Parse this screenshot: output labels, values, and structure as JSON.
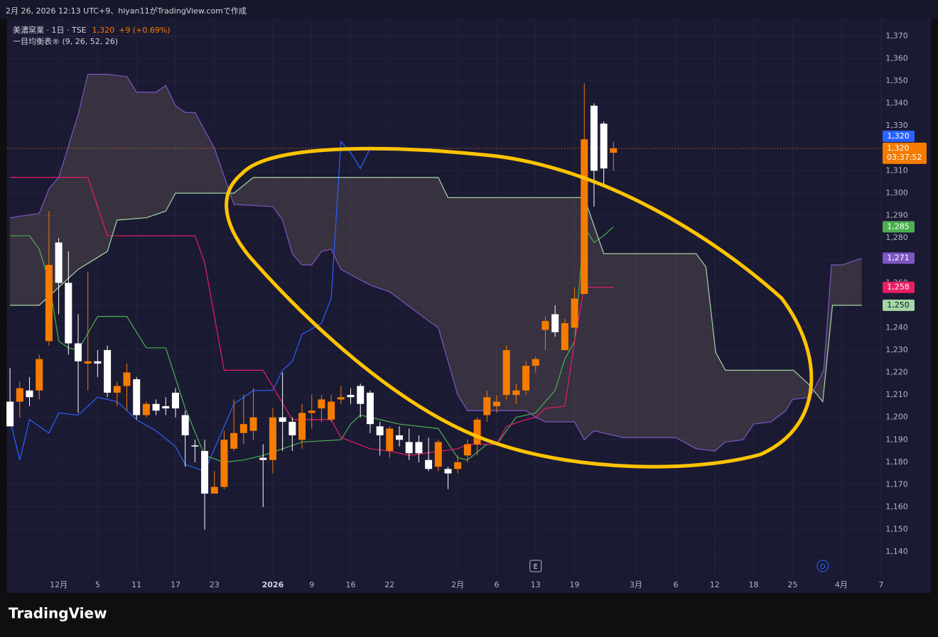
{
  "chart_data": {
    "type": "candlestick",
    "header": "2月 26, 2026 12:13 UTC+9、hiyan11がTradingView.comで作成",
    "symbol": "美濃窯業 · 1日 · TSE",
    "last": "1,320",
    "change": "+9 (+0.69%)",
    "indicator": "一目均衡表® (9, 26, 52, 26)",
    "logo": "TradingView",
    "up_color": "#f57c00",
    "down_color": "#ffffff",
    "x": [
      0,
      1,
      2,
      3,
      4,
      5,
      6,
      7,
      8,
      9,
      10,
      11,
      12,
      13,
      14,
      15,
      16,
      17,
      18,
      19,
      20,
      21,
      22,
      23,
      24,
      25,
      26,
      27,
      28,
      29,
      30,
      31,
      32,
      33,
      34,
      35,
      36,
      37,
      38,
      39,
      40,
      41,
      42,
      43,
      44,
      45,
      46,
      47,
      48,
      49,
      50,
      51,
      52,
      53,
      54,
      55,
      56,
      57,
      58,
      59,
      60,
      61,
      62
    ],
    "open": [
      1207,
      1207,
      1212,
      1212,
      1234,
      1278,
      1260,
      1233,
      1224,
      1225,
      1230,
      1211,
      1214,
      1217,
      1201,
      1206,
      1205,
      1211,
      1201,
      1187.5,
      1185,
      1166,
      1169,
      1186,
      1193,
      1194,
      1182,
      1181,
      1200,
      1198,
      1190,
      1202,
      1204,
      1199,
      1208,
      1210,
      1214,
      1211,
      1196,
      1185,
      1192,
      1189,
      1189,
      1181,
      1178,
      1177,
      1177,
      1183,
      1188,
      1201,
      1205,
      1210,
      1210,
      1212,
      1223,
      1239,
      1246,
      1230,
      1240,
      1255,
      1339,
      1331,
      1318
    ],
    "high": [
      1222,
      1216,
      1218,
      1228,
      1292,
      1280,
      1274,
      1246,
      1265,
      1230,
      1232,
      1216,
      1224,
      1218,
      1207,
      1208,
      1209,
      1213,
      1203,
      1190,
      1190,
      1176,
      1194,
      1208,
      1210,
      1213,
      1188,
      1204,
      1220,
      1200,
      1206,
      1210,
      1210,
      1210,
      1214,
      1213,
      1215,
      1212,
      1198,
      1196,
      1196,
      1195,
      1192,
      1191,
      1190,
      1178,
      1183,
      1190,
      1200,
      1212,
      1210,
      1232,
      1215,
      1225,
      1227,
      1245,
      1250,
      1244,
      1258,
      1349,
      1340,
      1332,
      1323
    ],
    "low": [
      1196,
      1200,
      1205,
      1208,
      1232,
      1246,
      1228,
      1202,
      1212,
      1218,
      1209,
      1205,
      1203,
      1199,
      1200,
      1201,
      1201,
      1200,
      1178,
      1180,
      1150,
      1166,
      1168,
      1185,
      1188,
      1190,
      1160,
      1175,
      1185,
      1185,
      1186,
      1195,
      1198,
      1198,
      1206,
      1206,
      1200,
      1193,
      1183,
      1182,
      1187,
      1181,
      1180,
      1176,
      1176,
      1168,
      1175,
      1180,
      1183,
      1198,
      1202,
      1208,
      1206,
      1210,
      1220,
      1230,
      1236,
      1230,
      1240,
      1255,
      1294,
      1304,
      1310
    ],
    "close": [
      1196,
      1213,
      1209,
      1226,
      1268,
      1260,
      1233,
      1225,
      1225,
      1224,
      1211,
      1214,
      1220,
      1201,
      1206,
      1203,
      1204,
      1204,
      1192,
      1187,
      1166,
      1169,
      1190,
      1193,
      1197,
      1200,
      1181,
      1200,
      1198,
      1192,
      1202,
      1203,
      1208,
      1207,
      1209,
      1209,
      1206,
      1197,
      1192,
      1195,
      1190,
      1184,
      1184,
      1177,
      1189,
      1175,
      1180,
      1188,
      1199,
      1209,
      1207,
      1230,
      1212,
      1223,
      1226,
      1243,
      1238,
      1242,
      1253,
      1324,
      1310,
      1311,
      1320
    ],
    "lines": [
      {
        "color": "#2962ff",
        "x": [
          0,
          1,
          2,
          4,
          5,
          7,
          9,
          11,
          13,
          15,
          17,
          18,
          20,
          21,
          23,
          25,
          27,
          28,
          29,
          30,
          32,
          33,
          34,
          35,
          36,
          37
        ],
        "values": [
          1199,
          1181,
          1199,
          1193,
          1202,
          1201,
          1209,
          1207,
          1199,
          1194,
          1187,
          1179,
          1176,
          1186,
          1206,
          1212,
          1212,
          1221,
          1225,
          1237,
          1242,
          1253,
          1323,
          1318,
          1311,
          1320
        ]
      },
      {
        "color": "#4caf50",
        "x": [
          0,
          2,
          3,
          4,
          5,
          6,
          7,
          9,
          12,
          14,
          16,
          18,
          20,
          22,
          24,
          26,
          28,
          30,
          34,
          35,
          36,
          38,
          40,
          44,
          46,
          47,
          49,
          50,
          52,
          54,
          56,
          57,
          58,
          59,
          60,
          61,
          62
        ],
        "values": [
          1281,
          1281,
          1275,
          1261,
          1234,
          1231,
          1230,
          1245,
          1245,
          1231,
          1231,
          1204,
          1183,
          1180,
          1181,
          1183,
          1186,
          1189,
          1190,
          1197,
          1201,
          1199,
          1197,
          1195,
          1182,
          1181,
          1188,
          1188,
          1200,
          1202,
          1212,
          1226,
          1234,
          1285,
          1278,
          1281,
          1285
        ]
      },
      {
        "color": "#e91e63",
        "x": [
          0,
          8,
          10,
          19,
          20,
          22,
          26,
          29,
          33,
          34,
          37,
          39,
          41,
          46,
          47,
          50,
          51,
          53,
          54,
          55,
          57,
          58,
          59,
          62
        ],
        "values": [
          1307,
          1307,
          1281,
          1281,
          1269,
          1221,
          1221,
          1199,
          1199,
          1191,
          1186,
          1185,
          1183,
          1186,
          1188,
          1188,
          1196,
          1199,
          1200,
          1204,
          1205,
          1234,
          1258,
          1258
        ]
      },
      {
        "color": "#a5d6a7",
        "x": [
          0,
          3,
          7,
          10,
          11,
          14,
          16,
          17,
          20,
          23,
          25,
          44,
          45,
          59,
          61,
          70.5,
          71.5,
          72.5,
          73.5,
          80.5,
          82,
          83.5,
          84.5,
          87.5
        ],
        "values": [
          1250,
          1250,
          1266,
          1274,
          1288,
          1289,
          1292,
          1300,
          1300,
          1300,
          1307,
          1307,
          1298,
          1298,
          1273,
          1273,
          1267,
          1229,
          1221,
          1221,
          1215,
          1207,
          1250,
          1250
        ]
      },
      {
        "color": "#7e57c2",
        "x": [
          0,
          3,
          4,
          5,
          7,
          8,
          10,
          12,
          13,
          15,
          16,
          17,
          18,
          19,
          21,
          23,
          27,
          28,
          29,
          30,
          31,
          32,
          33,
          34,
          37,
          39,
          43,
          44,
          46,
          47,
          53,
          54,
          55,
          58,
          59,
          60,
          63,
          68.4,
          70.5,
          72.4,
          73.5,
          75.3,
          76.4,
          78.2,
          79.7,
          80.4,
          82.2,
          83.6,
          84.4,
          85.5,
          87.5
        ],
        "values": [
          1289,
          1291,
          1302,
          1307,
          1335,
          1353,
          1353,
          1352,
          1345,
          1345,
          1348,
          1339,
          1336,
          1336,
          1320,
          1295,
          1294,
          1288,
          1273,
          1268,
          1268,
          1274,
          1275,
          1266,
          1259,
          1256,
          1243,
          1240,
          1210,
          1203,
          1203,
          1200,
          1198,
          1198,
          1190,
          1194,
          1191,
          1191,
          1186,
          1185,
          1189,
          1190,
          1197,
          1198,
          1203,
          1208,
          1209,
          1221,
          1268,
          1268,
          1271
        ]
      }
    ],
    "price_labels": [
      {
        "value": 1320,
        "label": "1,320",
        "color": "#2962ff"
      },
      {
        "value": 1285,
        "label": "1,285",
        "color": "#4caf50"
      },
      {
        "value": 1271,
        "label": "1,271",
        "color": "#7e57c2"
      },
      {
        "value": 1258,
        "label": "1,258",
        "color": "#e91e63"
      },
      {
        "value": 1250,
        "label": "1,250",
        "color": "#a5d6a7"
      }
    ],
    "last_price": {
      "value": 1320,
      "label": "1,320",
      "countdown": "03:37:52",
      "color": "#f57c00"
    },
    "markers": [
      {
        "label": "E",
        "x": 54
      },
      {
        "label": "D",
        "x": 83.5
      }
    ],
    "xlim": [
      -0.3,
      89.5
    ],
    "ylim": [
      1129.6,
      1377.9
    ],
    "xticks": [
      {
        "value": 5,
        "label": "12月"
      },
      {
        "value": 9,
        "label": "5"
      },
      {
        "value": 13,
        "label": "11"
      },
      {
        "value": 17,
        "label": "17"
      },
      {
        "value": 21,
        "label": "23"
      },
      {
        "value": 27,
        "label": "2026"
      },
      {
        "value": 31,
        "label": "9"
      },
      {
        "value": 35,
        "label": "16"
      },
      {
        "value": 39,
        "label": "22"
      },
      {
        "value": 46,
        "label": "2月"
      },
      {
        "value": 50,
        "label": "6"
      },
      {
        "value": 54,
        "label": "13"
      },
      {
        "value": 58,
        "label": "19"
      },
      {
        "value": 64.3,
        "label": "3月"
      },
      {
        "value": 68.4,
        "label": "6"
      },
      {
        "value": 72.4,
        "label": "12"
      },
      {
        "value": 76.4,
        "label": "18"
      },
      {
        "value": 80.4,
        "label": "25"
      },
      {
        "value": 85.4,
        "label": "4月"
      },
      {
        "value": 89.5,
        "label": "7"
      }
    ],
    "yticks": [
      {
        "value": 1140,
        "label": "1,140"
      },
      {
        "value": 1150,
        "label": "1,150"
      },
      {
        "value": 1160,
        "label": "1,160"
      },
      {
        "value": 1170,
        "label": "1,170"
      },
      {
        "value": 1180,
        "label": "1,180"
      },
      {
        "value": 1190,
        "label": "1,190"
      },
      {
        "value": 1200,
        "label": "1,200"
      },
      {
        "value": 1210,
        "label": "1,210"
      },
      {
        "value": 1220,
        "label": "1,220"
      },
      {
        "value": 1230,
        "label": "1,230"
      },
      {
        "value": 1240,
        "label": "1,240"
      },
      {
        "value": 1250,
        "label": "1,250"
      },
      {
        "value": 1260,
        "label": "1,260"
      },
      {
        "value": 1270,
        "label": "1,270"
      },
      {
        "value": 1280,
        "label": "1,280"
      },
      {
        "value": 1290,
        "label": "1,290"
      },
      {
        "value": 1300,
        "label": "1,300"
      },
      {
        "value": 1310,
        "label": "1,310"
      },
      {
        "value": 1320,
        "label": "1,320"
      },
      {
        "value": 1330,
        "label": "1,330"
      },
      {
        "value": 1340,
        "label": "1,340"
      },
      {
        "value": 1350,
        "label": "1,350"
      },
      {
        "value": 1360,
        "label": "1,360"
      },
      {
        "value": 1370,
        "label": "1,370"
      }
    ],
    "grid": true
  }
}
